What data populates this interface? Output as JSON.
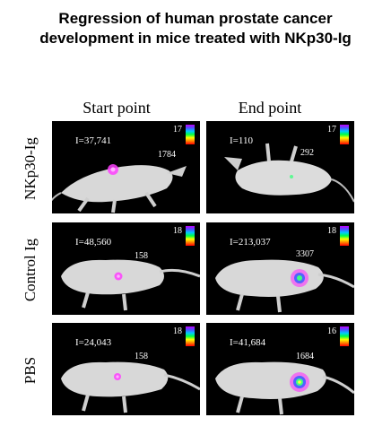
{
  "title_line1": "Regression of human prostate cancer",
  "title_line2": "development in mice treated with NKp30-Ig",
  "columns": [
    "Start point",
    "End point"
  ],
  "rows": [
    {
      "label": "NKp30-Ig",
      "panels": [
        {
          "intensity": "I=37,741",
          "max": "17",
          "min": "1784"
        },
        {
          "intensity": "I=110",
          "max": "17",
          "min": "292"
        }
      ]
    },
    {
      "label": "Control Ig",
      "panels": [
        {
          "intensity": "I=48,560",
          "max": "18",
          "min": "158"
        },
        {
          "intensity": "I=213,037",
          "max": "18",
          "min": "3307"
        }
      ]
    },
    {
      "label": "PBS",
      "panels": [
        {
          "intensity": "I=24,043",
          "max": "18",
          "min": "158"
        },
        {
          "intensity": "I=41,684",
          "max": "16",
          "min": "1684"
        }
      ]
    }
  ]
}
